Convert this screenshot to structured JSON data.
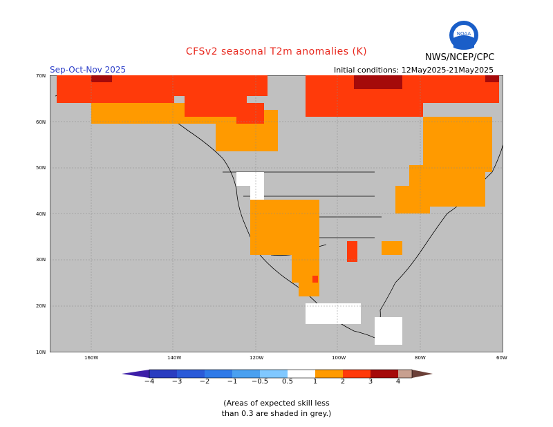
{
  "header": {
    "title": "CFSv2 seasonal T2m anomalies (K)",
    "org": "NWS/NCEP/CPC",
    "season": "Sep-Oct-Nov 2025",
    "initial_conditions": "Initial conditions: 12May2025-21May2025",
    "logo_text": "NOAA"
  },
  "map": {
    "lat_labels": [
      "70N",
      "60N",
      "50N",
      "40N",
      "30N",
      "20N",
      "10N"
    ],
    "lon_labels": [
      "160W",
      "140W",
      "120W",
      "100W",
      "80W",
      "60W"
    ],
    "colors": {
      "no_skill_grey": "#c0c0c0",
      "warm_05_1": "#ff9a00",
      "warm_1_2": "#ff3a0a",
      "warm_2_3": "#a50a0a",
      "neutral": "#ffffff"
    }
  },
  "colorbar": {
    "labels": [
      "−4",
      "−3",
      "−2",
      "−1",
      "−0.5",
      "0.5",
      "1",
      "2",
      "3",
      "4"
    ],
    "colors": [
      "#3d1fa8",
      "#2a4fd0",
      "#2f78e0",
      "#4aa0f0",
      "#80c8ff",
      "#ffffff",
      "#ff9a00",
      "#ff3a0a",
      "#a50a0a",
      "#c8a090",
      "#6b4038"
    ]
  },
  "footnote": {
    "line1": "(Areas of expected skill less",
    "line2": "than 0.3 are shaded in grey.)"
  }
}
